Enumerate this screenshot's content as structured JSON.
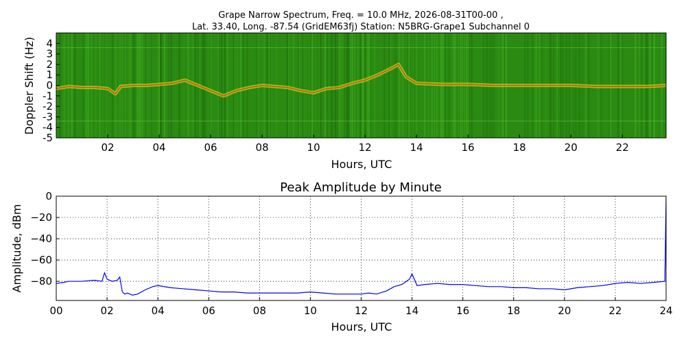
{
  "title_lines": [
    "Grape Narrow Spectrum, Freq. = 10.0 MHz, 2026-08-31T00-00 ,",
    "Lat.  33.40, Long. -87.54 (GridEM63fj) Station: N5BRG-Grape1 Subchannel 0"
  ],
  "colors": {
    "spectrogram_background": "#2a8a12",
    "spectrogram_trace": "#f2ef20",
    "spectrogram_peak": "#e23a10",
    "amplitude_line": "#0000ee"
  },
  "chart_data": [
    {
      "type": "heatmap",
      "title": "",
      "xlabel": "Hours, UTC",
      "ylabel": "Doppler Shift (Hz)",
      "xlim": [
        0,
        23.7
      ],
      "ylim": [
        -5,
        5
      ],
      "x_ticks": [
        "02",
        "04",
        "06",
        "08",
        "10",
        "12",
        "14",
        "16",
        "18",
        "20",
        "22"
      ],
      "y_ticks": [
        "4",
        "3",
        "2",
        "1",
        "0",
        "-1",
        "-2",
        "-3",
        "-4",
        "-5"
      ],
      "grid": false,
      "doppler_trace": {
        "x": [
          0.0,
          0.5,
          1.0,
          1.5,
          2.0,
          2.3,
          2.5,
          3.0,
          3.5,
          4.0,
          4.5,
          5.0,
          5.5,
          6.0,
          6.5,
          7.0,
          7.5,
          8.0,
          8.5,
          9.0,
          9.5,
          10.0,
          10.5,
          11.0,
          11.5,
          12.0,
          12.5,
          13.0,
          13.3,
          13.6,
          14.0,
          15.0,
          16.0,
          17.0,
          18.0,
          19.0,
          20.0,
          21.0,
          22.0,
          23.0,
          23.7
        ],
        "y": [
          -0.3,
          -0.1,
          -0.2,
          -0.2,
          -0.3,
          -0.8,
          -0.1,
          0.0,
          0.0,
          0.1,
          0.2,
          0.5,
          0.0,
          -0.5,
          -1.0,
          -0.5,
          -0.2,
          0.0,
          -0.1,
          -0.2,
          -0.5,
          -0.7,
          -0.3,
          -0.2,
          0.2,
          0.5,
          1.0,
          1.6,
          2.0,
          0.8,
          0.2,
          0.1,
          0.1,
          0.0,
          0.0,
          0.0,
          0.0,
          -0.1,
          -0.1,
          -0.1,
          0.0
        ]
      }
    },
    {
      "type": "line",
      "title": "Peak Amplitude by Minute",
      "xlabel": "Hours, UTC",
      "ylabel": "Amplitude, dBm",
      "xlim": [
        0,
        24
      ],
      "ylim": [
        -98,
        0
      ],
      "x_ticks": [
        "00",
        "02",
        "04",
        "06",
        "08",
        "10",
        "12",
        "14",
        "16",
        "18",
        "20",
        "22",
        "24"
      ],
      "y_ticks": [
        "0",
        "−20",
        "−40",
        "−60",
        "−80"
      ],
      "grid": true,
      "series": [
        {
          "x": [
            0.0,
            0.3,
            0.5,
            1.0,
            1.5,
            1.8,
            1.9,
            2.0,
            2.2,
            2.4,
            2.5,
            2.6,
            2.7,
            2.8,
            3.0,
            3.2,
            3.5,
            3.8,
            4.0,
            4.5,
            5.0,
            5.5,
            6.0,
            6.5,
            7.0,
            7.5,
            8.0,
            8.5,
            9.0,
            9.5,
            10.0,
            10.5,
            11.0,
            11.5,
            12.0,
            12.3,
            12.6,
            13.0,
            13.3,
            13.6,
            13.9,
            14.0,
            14.2,
            14.5,
            15.0,
            15.5,
            16.0,
            16.5,
            17.0,
            17.5,
            18.0,
            18.5,
            19.0,
            19.5,
            20.0,
            20.5,
            21.0,
            21.5,
            22.0,
            22.5,
            23.0,
            23.5,
            23.95,
            24.0
          ],
          "y": [
            -82,
            -81,
            -80,
            -80,
            -79,
            -80,
            -72,
            -78,
            -80,
            -79,
            -76,
            -90,
            -92,
            -91,
            -93,
            -92,
            -88,
            -85,
            -84,
            -86,
            -87,
            -88,
            -89,
            -90,
            -90,
            -91,
            -91,
            -91,
            -91,
            -91,
            -90,
            -91,
            -92,
            -92,
            -92,
            -91,
            -92,
            -89,
            -85,
            -83,
            -78,
            -73,
            -84,
            -83,
            -82,
            -83,
            -83,
            -84,
            -85,
            -85,
            -86,
            -86,
            -87,
            -87,
            -88,
            -86,
            -85,
            -84,
            -82,
            -81,
            -82,
            -81,
            -80,
            -2
          ]
        }
      ]
    }
  ]
}
